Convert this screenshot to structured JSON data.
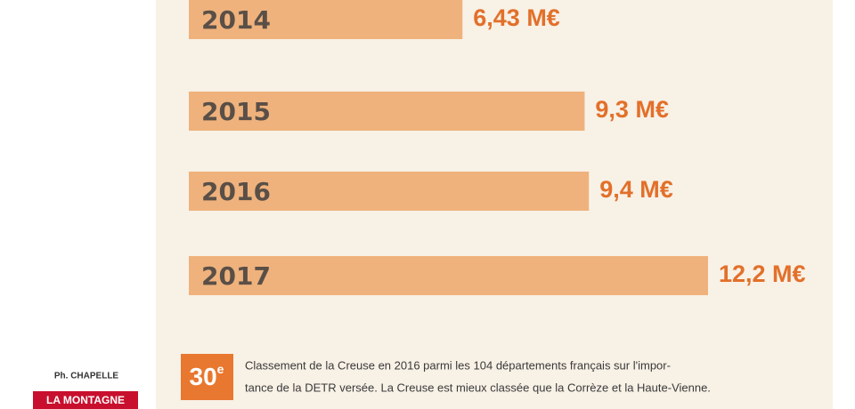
{
  "chart_data": {
    "type": "bar",
    "orientation": "horizontal",
    "categories": [
      "2014",
      "2015",
      "2016",
      "2017"
    ],
    "values": [
      6.43,
      9.3,
      9.4,
      12.2
    ],
    "value_labels": [
      "6,43 M€",
      "9,3 M€",
      "9,4 M€",
      "12,2 M€"
    ],
    "color": "#efb27c"
  },
  "note": {
    "rank": "30",
    "rank_suffix": "e",
    "lines": [
      "Classement de la Creuse en 2016 parmi les 104 départements français sur l'impor-",
      "tance de la DETR versée. La Creuse est mieux classée que la Corrèze et la Haute-Vienne."
    ]
  },
  "credit": {
    "photographer": "Ph. CHAPELLE",
    "source": "LA MONTAGNE"
  }
}
